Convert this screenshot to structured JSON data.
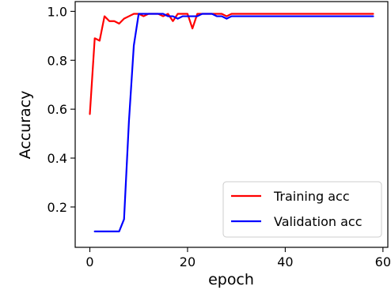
{
  "chart_data": {
    "type": "line",
    "xlabel": "epoch",
    "ylabel": "Accuracy",
    "xlim": [
      -3,
      61
    ],
    "ylim": [
      0.035,
      1.04
    ],
    "xticks": [
      0,
      20,
      40,
      60
    ],
    "yticks": [
      0.2,
      0.4,
      0.6,
      0.8,
      1.0
    ],
    "xtick_labels": [
      "0",
      "20",
      "40",
      "60"
    ],
    "ytick_labels": [
      "0.2",
      "0.4",
      "0.6",
      "0.8",
      "1.0"
    ],
    "grid": false,
    "legend_position": "lower-right",
    "series": [
      {
        "name": "Training acc",
        "color": "#ff0000",
        "x": [
          0,
          1,
          2,
          3,
          4,
          5,
          6,
          7,
          8,
          9,
          10,
          11,
          12,
          13,
          14,
          15,
          16,
          17,
          18,
          19,
          20,
          21,
          22,
          23,
          24,
          25,
          26,
          27,
          28,
          29,
          30,
          31,
          32,
          33,
          34,
          35,
          36,
          37,
          38,
          39,
          40,
          41,
          42,
          43,
          44,
          45,
          46,
          47,
          48,
          49,
          50,
          51,
          52,
          53,
          54,
          55,
          56,
          57,
          58
        ],
        "values": [
          0.58,
          0.89,
          0.88,
          0.98,
          0.96,
          0.96,
          0.95,
          0.97,
          0.98,
          0.99,
          0.99,
          0.98,
          0.99,
          0.99,
          0.99,
          0.98,
          0.99,
          0.96,
          0.99,
          0.99,
          0.99,
          0.93,
          0.99,
          0.99,
          0.99,
          0.99,
          0.99,
          0.99,
          0.98,
          0.99,
          0.99,
          0.99,
          0.99,
          0.99,
          0.99,
          0.99,
          0.99,
          0.99,
          0.99,
          0.99,
          0.99,
          0.99,
          0.99,
          0.99,
          0.99,
          0.99,
          0.99,
          0.99,
          0.99,
          0.99,
          0.99,
          0.99,
          0.99,
          0.99,
          0.99,
          0.99,
          0.99,
          0.99,
          0.99
        ]
      },
      {
        "name": "Validation acc",
        "color": "#0000ff",
        "x": [
          1,
          2,
          3,
          4,
          5,
          6,
          7,
          8,
          9,
          10,
          11,
          12,
          13,
          14,
          15,
          16,
          17,
          18,
          19,
          20,
          21,
          22,
          23,
          24,
          25,
          26,
          27,
          28,
          29,
          30,
          31,
          32,
          33,
          34,
          35,
          36,
          37,
          38,
          39,
          40,
          41,
          42,
          43,
          44,
          45,
          46,
          47,
          48,
          49,
          50,
          51,
          52,
          53,
          54,
          55,
          56,
          57,
          58
        ],
        "values": [
          0.1,
          0.1,
          0.1,
          0.1,
          0.1,
          0.1,
          0.15,
          0.55,
          0.86,
          0.99,
          0.99,
          0.99,
          0.99,
          0.99,
          0.99,
          0.98,
          0.98,
          0.97,
          0.98,
          0.98,
          0.98,
          0.98,
          0.99,
          0.99,
          0.99,
          0.98,
          0.98,
          0.97,
          0.98,
          0.98,
          0.98,
          0.98,
          0.98,
          0.98,
          0.98,
          0.98,
          0.98,
          0.98,
          0.98,
          0.98,
          0.98,
          0.98,
          0.98,
          0.98,
          0.98,
          0.98,
          0.98,
          0.98,
          0.98,
          0.98,
          0.98,
          0.98,
          0.98,
          0.98,
          0.98,
          0.98,
          0.98,
          0.98
        ]
      }
    ]
  }
}
